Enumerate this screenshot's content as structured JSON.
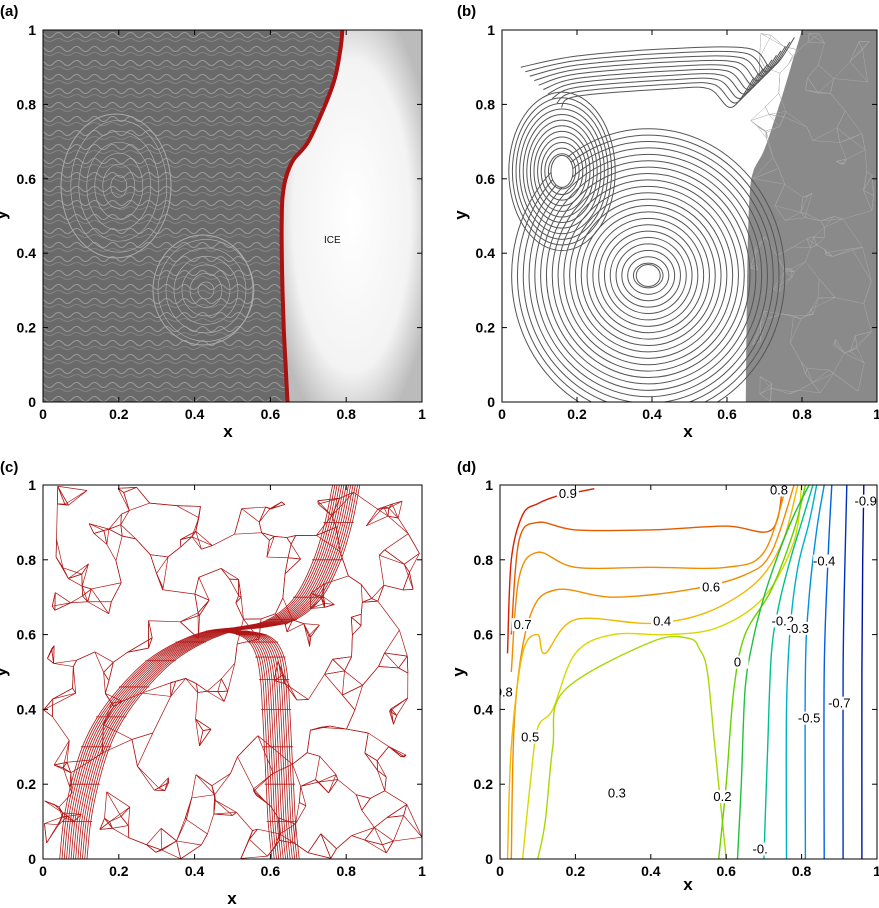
{
  "colors": {
    "interface_line": "#aa1111",
    "mesh": "#b01515",
    "streamline": "#555555",
    "solid_gray": "#8a8a8a",
    "photo_bg": "#6e6e6e"
  },
  "chart_data": [
    {
      "panel": "(a)",
      "type": "line",
      "xlabel": "x",
      "ylabel": "y",
      "xlim": [
        0,
        1
      ],
      "ylim": [
        0,
        1
      ],
      "xticks": [
        "0",
        "0.2",
        "0.4",
        "0.6",
        "0.8",
        "1"
      ],
      "yticks": [
        "0",
        "0.2",
        "0.4",
        "0.6",
        "0.8",
        "1"
      ],
      "annotations": [
        "ICE"
      ],
      "series": [
        {
          "x": [
            0.645,
            0.64,
            0.635,
            0.632,
            0.63,
            0.63,
            0.632,
            0.64,
            0.66,
            0.7,
            0.745,
            0.77,
            0.785,
            0.79
          ],
          "y": [
            0.0,
            0.1,
            0.2,
            0.3,
            0.4,
            0.5,
            0.55,
            0.6,
            0.65,
            0.7,
            0.8,
            0.87,
            0.95,
            1.0
          ]
        }
      ]
    },
    {
      "panel": "(b)",
      "type": "line",
      "xlabel": "x",
      "ylabel": "y",
      "xlim": [
        0,
        1
      ],
      "ylim": [
        0,
        1
      ],
      "xticks": [
        "0",
        "0.2",
        "0.4",
        "0.6",
        "0.8",
        "1"
      ],
      "yticks": [
        "0",
        "0.2",
        "0.4",
        "0.6",
        "0.8",
        "1"
      ],
      "vortex_centers": [
        {
          "x": 0.16,
          "y": 0.62
        },
        {
          "x": 0.39,
          "y": 0.34
        }
      ],
      "series": [
        {
          "x": [
            0.65,
            0.652,
            0.655,
            0.66,
            0.67,
            0.7,
            0.74,
            0.77,
            0.8
          ],
          "y": [
            0.0,
            0.2,
            0.4,
            0.55,
            0.62,
            0.68,
            0.8,
            0.9,
            1.0
          ]
        }
      ]
    },
    {
      "panel": "(c)",
      "type": "line",
      "xlabel": "x",
      "ylabel": "y",
      "xlim": [
        0,
        1
      ],
      "ylim": [
        0,
        1
      ],
      "xticks": [
        "0",
        "0.2",
        "0.4",
        "0.6",
        "0.8",
        "1"
      ],
      "yticks": [
        "0",
        "0.2",
        "0.4",
        "0.6",
        "0.8",
        "1"
      ],
      "series": [
        {
          "x": [
            0.08,
            0.09,
            0.11,
            0.14,
            0.18,
            0.24,
            0.31,
            0.39,
            0.47,
            0.55,
            0.63,
            0.7,
            0.75,
            0.78,
            0.8
          ],
          "y": [
            0.0,
            0.1,
            0.2,
            0.3,
            0.38,
            0.46,
            0.53,
            0.58,
            0.61,
            0.62,
            0.64,
            0.7,
            0.8,
            0.9,
            1.0
          ]
        },
        {
          "x": [
            0.64,
            0.63,
            0.625,
            0.62,
            0.615,
            0.61,
            0.6,
            0.58,
            0.55,
            0.5
          ],
          "y": [
            0.0,
            0.1,
            0.2,
            0.3,
            0.4,
            0.48,
            0.54,
            0.58,
            0.6,
            0.61
          ]
        }
      ]
    },
    {
      "panel": "(d)",
      "type": "line",
      "xlabel": "x",
      "ylabel": "y",
      "xlim": [
        0,
        1
      ],
      "ylim": [
        0,
        1
      ],
      "xticks": [
        "0",
        "0.2",
        "0.4",
        "0.6",
        "0.8",
        "1"
      ],
      "yticks": [
        "0",
        "0.2",
        "0.4",
        "0.6",
        "0.8",
        "1"
      ],
      "contour_labels": [
        {
          "text": "0.9",
          "x": 0.18,
          "y": 0.97
        },
        {
          "text": "0.8",
          "x": 0.74,
          "y": 0.98
        },
        {
          "text": "-0.9",
          "x": 0.97,
          "y": 0.95
        },
        {
          "text": "0.7",
          "x": 0.06,
          "y": 0.62
        },
        {
          "text": "0.6",
          "x": 0.56,
          "y": 0.72
        },
        {
          "text": "0.4",
          "x": 0.43,
          "y": 0.63
        },
        {
          "text": "-0.4",
          "x": 0.86,
          "y": 0.79
        },
        {
          "text": "-0.2",
          "x": 0.75,
          "y": 0.63
        },
        {
          "text": "-0.3",
          "x": 0.79,
          "y": 0.61
        },
        {
          "text": "0.8",
          "x": 0.01,
          "y": 0.44
        },
        {
          "text": "0",
          "x": 0.63,
          "y": 0.52
        },
        {
          "text": "0.5",
          "x": 0.08,
          "y": 0.32
        },
        {
          "text": "-0.5",
          "x": 0.82,
          "y": 0.37
        },
        {
          "text": "-0.7",
          "x": 0.9,
          "y": 0.41
        },
        {
          "text": "0.3",
          "x": 0.31,
          "y": 0.17
        },
        {
          "text": "0.2",
          "x": 0.59,
          "y": 0.16
        },
        {
          "text": "-0.",
          "x": 0.69,
          "y": 0.02
        }
      ],
      "series": [
        {
          "name": "0.9",
          "x": [
            0.02,
            0.03,
            0.06,
            0.1,
            0.15,
            0.2,
            0.25
          ],
          "y": [
            0.55,
            0.8,
            0.92,
            0.95,
            0.97,
            0.98,
            0.99
          ]
        },
        {
          "name": "0.8",
          "x": [
            0.03,
            0.05,
            0.1,
            0.2,
            0.4,
            0.6,
            0.72,
            0.75
          ],
          "y": [
            0.6,
            0.85,
            0.9,
            0.88,
            0.88,
            0.89,
            0.88,
            1.0
          ]
        },
        {
          "name": "0.7",
          "x": [
            0.03,
            0.05,
            0.1,
            0.2,
            0.4,
            0.6,
            0.7,
            0.76
          ],
          "y": [
            0.5,
            0.75,
            0.82,
            0.78,
            0.78,
            0.78,
            0.82,
            1.0
          ]
        }
      ]
    }
  ]
}
